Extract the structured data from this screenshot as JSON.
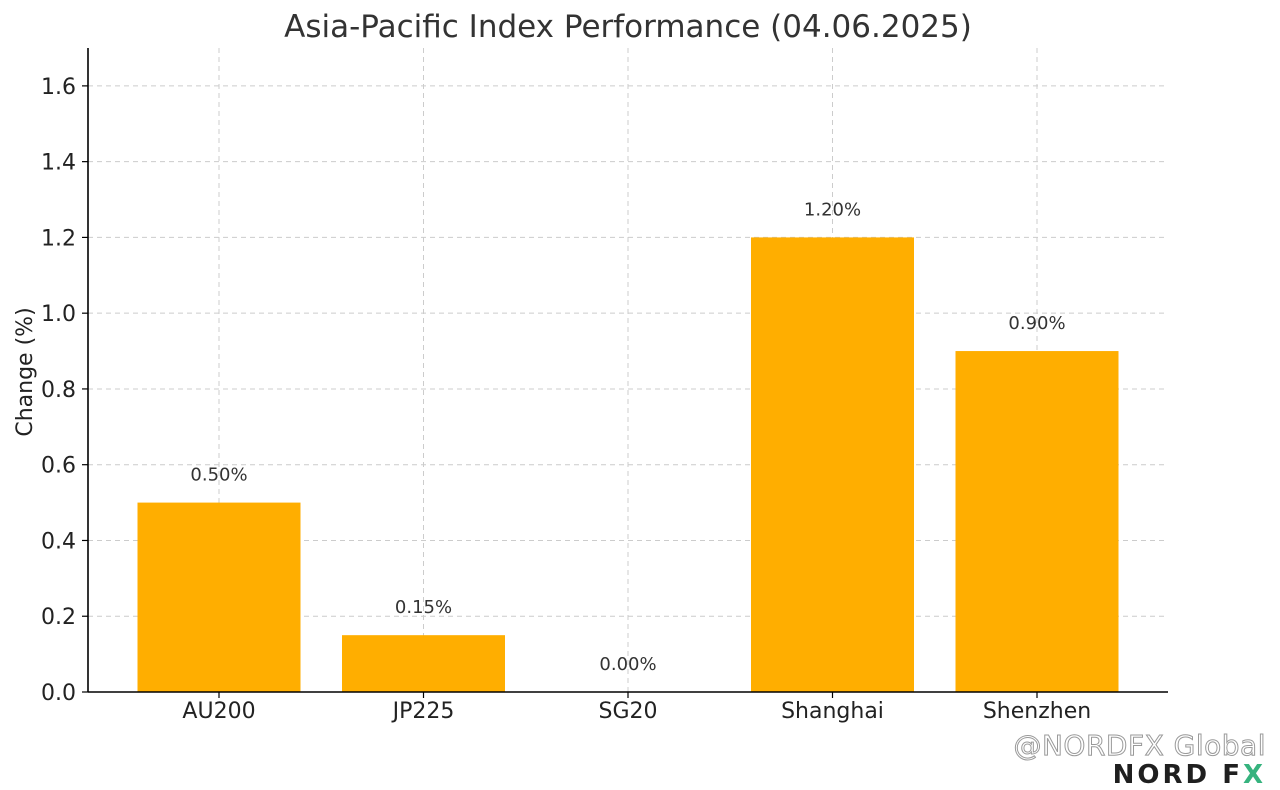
{
  "chart_data": {
    "type": "bar",
    "title": "Asia-Pacific Index Performance (04.06.2025)",
    "xlabel": "",
    "ylabel": "Change (%)",
    "categories": [
      "AU200",
      "JP225",
      "SG20",
      "Shanghai",
      "Shenzhen"
    ],
    "values": [
      0.5,
      0.15,
      0.0,
      1.2,
      0.9
    ],
    "data_labels": [
      "0.50%",
      "0.15%",
      "0.00%",
      "1.20%",
      "0.90%"
    ],
    "ylim": [
      0,
      1.7
    ],
    "yticks": [
      0.0,
      0.2,
      0.4,
      0.6,
      0.8,
      1.0,
      1.2,
      1.4,
      1.6
    ],
    "ytick_labels": [
      "0.0",
      "0.2",
      "0.4",
      "0.6",
      "0.8",
      "1.0",
      "1.2",
      "1.4",
      "1.6"
    ],
    "grid": true,
    "legend": "none",
    "bar_color": "#FFAE00"
  },
  "watermark": {
    "handle": "@NORDFX Global",
    "brand_main": "NORD F",
    "brand_x": "X"
  },
  "colors": {
    "bar": "#FFAE00",
    "brand_accent": "#36B37E"
  }
}
